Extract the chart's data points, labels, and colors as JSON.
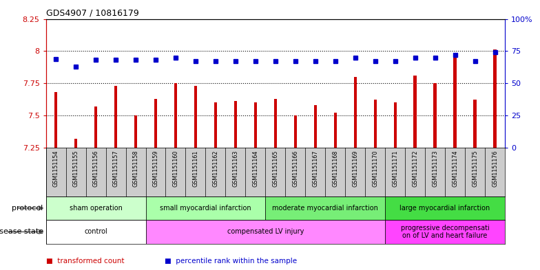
{
  "title": "GDS4907 / 10816179",
  "samples": [
    "GSM1151154",
    "GSM1151155",
    "GSM1151156",
    "GSM1151157",
    "GSM1151158",
    "GSM1151159",
    "GSM1151160",
    "GSM1151161",
    "GSM1151162",
    "GSM1151163",
    "GSM1151164",
    "GSM1151165",
    "GSM1151166",
    "GSM1151167",
    "GSM1151168",
    "GSM1151169",
    "GSM1151170",
    "GSM1151171",
    "GSM1151172",
    "GSM1151173",
    "GSM1151174",
    "GSM1151175",
    "GSM1151176"
  ],
  "transformed_count": [
    7.68,
    7.32,
    7.57,
    7.73,
    7.5,
    7.63,
    7.75,
    7.73,
    7.6,
    7.61,
    7.6,
    7.63,
    7.5,
    7.58,
    7.52,
    7.8,
    7.62,
    7.6,
    7.81,
    7.75,
    7.95,
    7.62,
    8.01
  ],
  "percentile_rank": [
    69,
    63,
    68,
    68,
    68,
    68,
    70,
    67,
    67,
    67,
    67,
    67,
    67,
    67,
    67,
    70,
    67,
    67,
    70,
    70,
    72,
    67,
    74
  ],
  "ylim_left": [
    7.25,
    8.25
  ],
  "ylim_right": [
    0,
    100
  ],
  "yticks_left": [
    7.25,
    7.5,
    7.75,
    8.0,
    8.25
  ],
  "yticks_right": [
    0,
    25,
    50,
    75,
    100
  ],
  "ytick_labels_left": [
    "7.25",
    "7.5",
    "7.75",
    "8",
    "8.25"
  ],
  "ytick_labels_right": [
    "0",
    "25",
    "50",
    "75",
    "100%"
  ],
  "bar_color": "#cc0000",
  "dot_color": "#0000cc",
  "protocol_groups": [
    {
      "label": "sham operation",
      "start": 0,
      "end": 4,
      "color": "#ccffcc"
    },
    {
      "label": "small myocardial infarction",
      "start": 5,
      "end": 10,
      "color": "#aaffaa"
    },
    {
      "label": "moderate myocardial infarction",
      "start": 11,
      "end": 16,
      "color": "#77ee77"
    },
    {
      "label": "large myocardial infarction",
      "start": 17,
      "end": 22,
      "color": "#44dd44"
    }
  ],
  "disease_groups": [
    {
      "label": "control",
      "start": 0,
      "end": 4,
      "color": "#ffffff"
    },
    {
      "label": "compensated LV injury",
      "start": 5,
      "end": 16,
      "color": "#ff88ff"
    },
    {
      "label": "progressive decompensati\non of LV and heart failure",
      "start": 17,
      "end": 22,
      "color": "#ff44ff"
    }
  ],
  "legend_items": [
    {
      "label": "transformed count",
      "color": "#cc0000"
    },
    {
      "label": "percentile rank within the sample",
      "color": "#0000cc"
    }
  ],
  "xticklabel_bg": "#cccccc",
  "grid_color": "#000000",
  "bar_width": 0.15
}
